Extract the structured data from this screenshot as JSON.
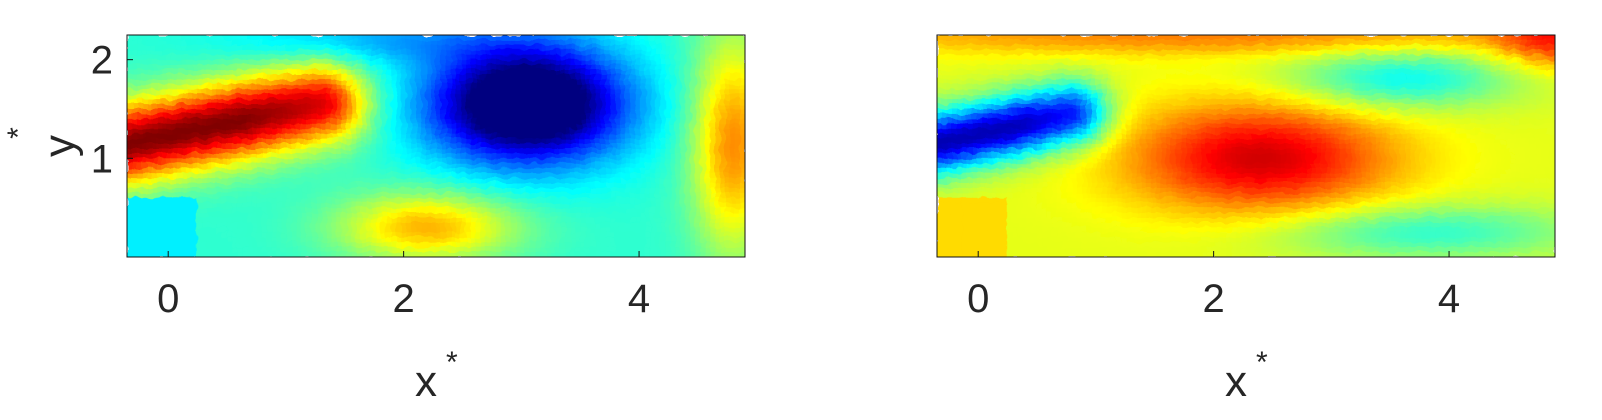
{
  "chart_data": [
    {
      "type": "heatmap",
      "panel": "left",
      "xlabel": "x",
      "xlabel_sup": "*",
      "ylabel": "y",
      "ylabel_sup": "*",
      "xlim": [
        -0.35,
        4.9
      ],
      "ylim": [
        0.0,
        2.25
      ],
      "xticks": [
        0,
        2,
        4
      ],
      "xtick_labels": [
        "0",
        "2",
        "4"
      ],
      "yticks": [
        1,
        2
      ],
      "ytick_labels": [
        "1",
        "2"
      ],
      "colormap": "jet",
      "background_level": 0.42,
      "features": [
        {
          "kind": "positive-jet",
          "x0": -0.35,
          "y0": 1.15,
          "x1": 1.3,
          "y1": 1.55,
          "width": 0.28,
          "amplitude": 0.58
        },
        {
          "kind": "negative-vortex",
          "x": 3.05,
          "y": 1.55,
          "rx": 0.8,
          "ry": 0.58,
          "amplitude": -0.62
        },
        {
          "kind": "positive-patch",
          "x": 4.8,
          "y": 1.15,
          "rx": 0.35,
          "ry": 1.1,
          "amplitude": 0.32
        },
        {
          "kind": "positive-patch",
          "x": 2.2,
          "y": 0.3,
          "rx": 0.75,
          "ry": 0.35,
          "amplitude": 0.28
        },
        {
          "kind": "negative-patch",
          "x": 1.8,
          "y": 2.2,
          "rx": 1.2,
          "ry": 0.25,
          "amplitude": -0.12
        }
      ],
      "masked_region": {
        "x0": -0.35,
        "x1": 0.25,
        "y0": 0.0,
        "y1": 0.62,
        "level": 0.36
      }
    },
    {
      "type": "heatmap",
      "panel": "right",
      "xlabel": "x",
      "xlabel_sup": "*",
      "ylabel": "",
      "xlim": [
        -0.35,
        4.9
      ],
      "ylim": [
        0.0,
        2.25
      ],
      "xticks": [
        0,
        2,
        4
      ],
      "xtick_labels": [
        "0",
        "2",
        "4"
      ],
      "yticks": [],
      "ytick_labels": [],
      "colormap": "jet",
      "background_level": 0.6,
      "features": [
        {
          "kind": "negative-jet",
          "x0": -0.35,
          "y0": 1.15,
          "x1": 0.8,
          "y1": 1.45,
          "width": 0.22,
          "amplitude": -0.55
        },
        {
          "kind": "positive-core",
          "x": 2.4,
          "y": 1.0,
          "rx": 1.1,
          "ry": 0.55,
          "amplitude": 0.32
        },
        {
          "kind": "negative-patch",
          "x": 3.6,
          "y": 1.8,
          "rx": 0.95,
          "ry": 0.3,
          "amplitude": -0.22
        },
        {
          "kind": "negative-patch",
          "x": 3.8,
          "y": 0.25,
          "rx": 1.3,
          "ry": 0.28,
          "amplitude": -0.18
        },
        {
          "kind": "positive-patch",
          "x": 2.0,
          "y": 2.25,
          "rx": 3.5,
          "ry": 0.2,
          "amplitude": 0.15
        },
        {
          "kind": "positive-patch",
          "x": 4.9,
          "y": 2.2,
          "rx": 0.5,
          "ry": 0.3,
          "amplitude": 0.2
        }
      ],
      "masked_region": {
        "x0": -0.35,
        "x1": 0.25,
        "y0": 0.0,
        "y1": 0.62,
        "level": 0.66
      }
    }
  ]
}
